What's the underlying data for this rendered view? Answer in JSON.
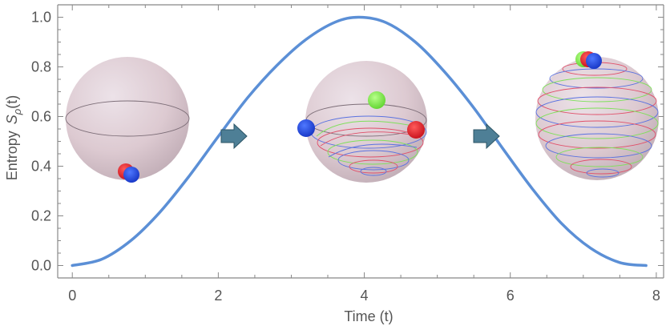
{
  "chart_data": {
    "type": "line",
    "xlabel": "Time (t)",
    "ylabel": "Entropy",
    "ylabel_symbol": "S",
    "ylabel_subscript": "ρ",
    "ylabel_arg": "(t)",
    "xlim": [
      -0.2,
      8.1
    ],
    "ylim": [
      -0.05,
      1.05
    ],
    "x_ticks": [
      0,
      2,
      4,
      6,
      8
    ],
    "x_tick_labels": [
      "0",
      "2",
      "4",
      "6",
      "8"
    ],
    "y_ticks": [
      0.0,
      0.2,
      0.4,
      0.6,
      0.8,
      1.0
    ],
    "y_tick_labels": [
      "0.0",
      "0.2",
      "0.4",
      "0.6",
      "0.8",
      "1.0"
    ],
    "grid": false,
    "series": [
      {
        "color": "#5b8fd6",
        "x": [
          0.0,
          0.4,
          0.8,
          1.2,
          1.6,
          2.0,
          2.4,
          2.8,
          3.2,
          3.6,
          3.93,
          4.3,
          4.7,
          5.1,
          5.5,
          5.9,
          6.3,
          6.7,
          7.1,
          7.5,
          7.86
        ],
        "y": [
          0.0,
          0.025,
          0.1,
          0.215,
          0.36,
          0.52,
          0.675,
          0.805,
          0.91,
          0.98,
          1.0,
          0.978,
          0.9,
          0.78,
          0.635,
          0.47,
          0.31,
          0.17,
          0.07,
          0.012,
          0.0
        ]
      }
    ],
    "insets": [
      {
        "name": "bloch-sphere-initial",
        "time": 0.8
      },
      {
        "name": "bloch-sphere-middle",
        "time": 4.0
      },
      {
        "name": "bloch-sphere-final",
        "time": 7.9
      }
    ],
    "arrows": [
      "right-arrow-1",
      "right-arrow-2"
    ],
    "colors": {
      "curve": "#5b8fd6",
      "axes": "#888888",
      "text": "#555555",
      "arrow": "#4e7f96",
      "point_red": "#e8202a",
      "point_blue": "#1e46e6",
      "point_green": "#7ef04a"
    }
  }
}
